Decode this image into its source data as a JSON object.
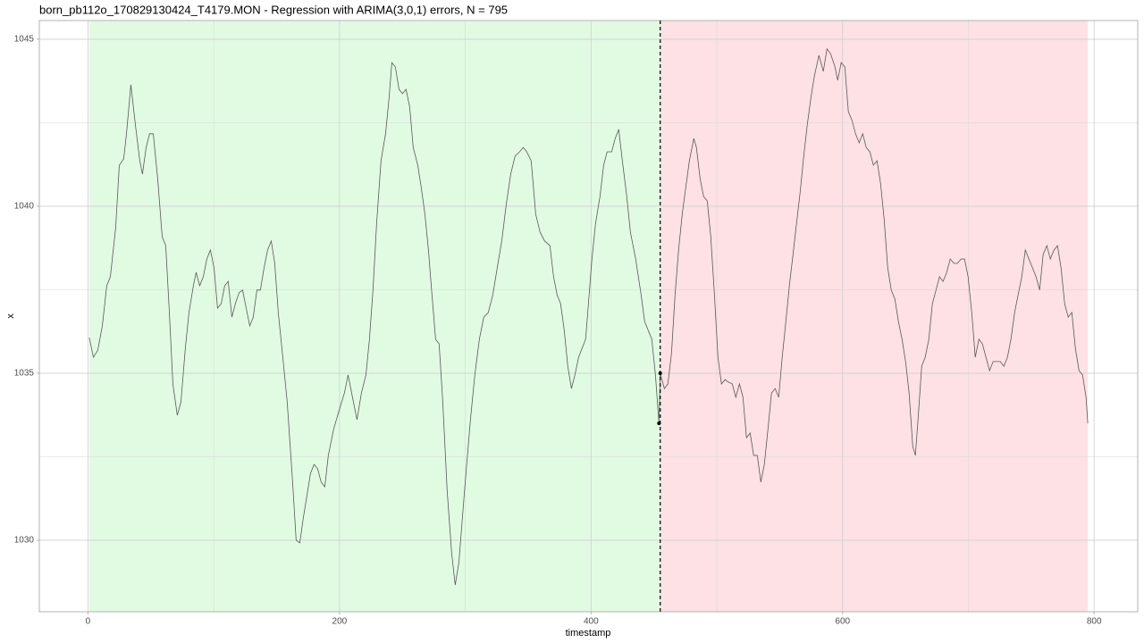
{
  "chart_data": {
    "type": "line",
    "title": "born_pb112o_170829130424_T4179.MON - Regression with ARIMA(3,0,1) errors, N = 795",
    "x_label": "timestamp",
    "y_label": "x",
    "xlim": [
      -38.7,
      834.7
    ],
    "ylim": [
      1027.86,
      1045.56
    ],
    "xticks": [
      0,
      200,
      400,
      600,
      800
    ],
    "yticks": [
      1030,
      1035,
      1040,
      1045
    ],
    "x_minor_ticks": [
      100,
      300,
      500,
      700
    ],
    "y_minor_ticks": [
      1032.5,
      1037.5,
      1042.5
    ],
    "grid": true,
    "regions": [
      {
        "from": 1,
        "to": 455,
        "color": "#e0fbe1"
      },
      {
        "from": 455,
        "to": 795,
        "color": "#fde1e4"
      }
    ],
    "changepoint": 455,
    "markers": {
      "x": [
        454,
        455
      ],
      "y": [
        1033.5,
        1035.0
      ],
      "color": "#000000"
    },
    "x": [
      1,
      4.3,
      7.8,
      11.4,
      14.9,
      17.8,
      22.0,
      24.9,
      28.4,
      30.6,
      34.1,
      37.7,
      41.2,
      43.3,
      46.2,
      49.0,
      51.9,
      55.4,
      59.0,
      61.8,
      64.7,
      67.5,
      71.0,
      73.9,
      77.4,
      80.3,
      83.8,
      86.0,
      88.8,
      91.7,
      94.5,
      97.3,
      100.2,
      103.0,
      105.9,
      108.7,
      111.5,
      114.4,
      117.2,
      120.1,
      122.9,
      125.8,
      128.6,
      131.4,
      134.3,
      137.1,
      140.0,
      142.8,
      145.7,
      148.5,
      151.3,
      154.9,
      158.4,
      162.7,
      165.5,
      168.4,
      171.2,
      174.1,
      176.9,
      179.8,
      182.6,
      185.4,
      188.3,
      191.1,
      195.4,
      199.6,
      203.9,
      206.8,
      210.3,
      213.9,
      217.4,
      221.0,
      223.8,
      226.6,
      229.5,
      233.0,
      236.6,
      239.4,
      241.6,
      244.4,
      247.3,
      250.1,
      252.9,
      255.8,
      258.6,
      262.2,
      265.0,
      267.9,
      270.7,
      273.5,
      276.4,
      279.2,
      282.1,
      285.6,
      289.2,
      292.0,
      294.9,
      297.7,
      300.5,
      304.1,
      307.6,
      311.2,
      314.7,
      318.3,
      321.9,
      325.4,
      329.0,
      332.5,
      336.1,
      339.6,
      343.2,
      346.0,
      348.9,
      352.4,
      356.0,
      359.5,
      363.1,
      367.3,
      370.2,
      373.0,
      375.8,
      378.7,
      381.5,
      384.4,
      387.2,
      390.1,
      392.9,
      395.7,
      397.9,
      400.7,
      403.6,
      407.1,
      410.0,
      412.8,
      416.4,
      419.2,
      422.0,
      424.9,
      428.4,
      431.3,
      435.5,
      439.8,
      442.6,
      445.5,
      448.3,
      451.2,
      454,
      455,
      458.3,
      461.1,
      464.0,
      466.8,
      469.6,
      472.5,
      475.3,
      478.2,
      481.7,
      483.8,
      486.7,
      489.5,
      492.4,
      495.2,
      498.1,
      500.9,
      503.7,
      506.6,
      509.4,
      512.3,
      515.1,
      518.0,
      520.8,
      523.6,
      526.5,
      529.3,
      532.2,
      535.0,
      537.8,
      540.7,
      543.5,
      546.4,
      549.2,
      552.0,
      554.9,
      557.7,
      560.6,
      563.4,
      566.3,
      569.1,
      571.9,
      574.8,
      577.6,
      581.2,
      584.7,
      587.6,
      590.4,
      594.0,
      596.1,
      598.9,
      601.8,
      604.6,
      607.5,
      610.3,
      613.2,
      616.0,
      618.8,
      621.7,
      624.5,
      627.4,
      630.2,
      633.0,
      635.9,
      638.7,
      641.6,
      644.4,
      647.3,
      650.1,
      652.9,
      655.8,
      657.9,
      660.0,
      662.9,
      665.7,
      668.6,
      671.4,
      674.3,
      677.1,
      679.9,
      682.8,
      685.6,
      688.5,
      691.3,
      694.2,
      697.0,
      699.8,
      702.7,
      705.5,
      708.4,
      711.2,
      714.0,
      716.9,
      719.7,
      722.6,
      725.4,
      728.3,
      731.1,
      733.9,
      736.8,
      739.6,
      742.5,
      745.3,
      748.2,
      751.0,
      753.8,
      756.7,
      759.5,
      762.4,
      765.2,
      768.1,
      770.9,
      773.7,
      776.6,
      779.4,
      782.3,
      785.1,
      788.0,
      790.8,
      793.6,
      795
    ],
    "series": [
      {
        "color": "#595959",
        "values": [
          1036.07,
          1035.48,
          1035.69,
          1036.42,
          1037.62,
          1037.89,
          1039.36,
          1041.23,
          1041.42,
          1042.17,
          1043.64,
          1042.43,
          1041.36,
          1040.96,
          1041.76,
          1042.17,
          1042.17,
          1040.83,
          1039.09,
          1038.82,
          1036.82,
          1034.68,
          1033.74,
          1034.14,
          1035.75,
          1036.82,
          1037.62,
          1038.02,
          1037.62,
          1037.89,
          1038.42,
          1038.69,
          1038.16,
          1036.95,
          1037.08,
          1037.62,
          1037.75,
          1036.68,
          1037.08,
          1037.41,
          1037.49,
          1036.95,
          1036.42,
          1036.68,
          1037.49,
          1037.49,
          1038.16,
          1038.69,
          1038.96,
          1038.29,
          1036.82,
          1035.48,
          1034.14,
          1031.74,
          1030.0,
          1029.92,
          1030.67,
          1031.34,
          1032.0,
          1032.27,
          1032.14,
          1031.74,
          1031.6,
          1032.54,
          1033.34,
          1033.88,
          1034.41,
          1034.95,
          1034.28,
          1033.61,
          1034.41,
          1034.95,
          1036.02,
          1037.49,
          1039.49,
          1041.36,
          1042.17,
          1043.24,
          1044.3,
          1044.17,
          1043.5,
          1043.37,
          1043.5,
          1042.97,
          1041.76,
          1041.23,
          1040.56,
          1039.76,
          1038.69,
          1037.35,
          1036.02,
          1035.88,
          1034.14,
          1031.47,
          1029.6,
          1028.66,
          1029.33,
          1030.67,
          1032.0,
          1033.61,
          1034.95,
          1036.02,
          1036.68,
          1036.82,
          1037.35,
          1038.16,
          1038.96,
          1040.03,
          1040.96,
          1041.5,
          1041.63,
          1041.76,
          1041.63,
          1041.36,
          1039.76,
          1039.22,
          1038.96,
          1038.82,
          1037.89,
          1037.35,
          1037.08,
          1036.28,
          1035.21,
          1034.54,
          1034.95,
          1035.48,
          1035.75,
          1036.02,
          1037.08,
          1038.42,
          1039.49,
          1040.29,
          1041.23,
          1041.63,
          1041.63,
          1042.03,
          1042.3,
          1041.36,
          1040.29,
          1039.22,
          1038.42,
          1037.35,
          1036.55,
          1036.28,
          1036.02,
          1034.95,
          1033.5,
          1035.0,
          1034.54,
          1034.68,
          1035.61,
          1037.35,
          1038.69,
          1039.76,
          1040.56,
          1041.36,
          1042.03,
          1041.76,
          1040.83,
          1040.29,
          1040.16,
          1039.09,
          1037.35,
          1035.48,
          1034.68,
          1034.81,
          1034.73,
          1034.68,
          1034.28,
          1034.68,
          1034.28,
          1033.07,
          1033.21,
          1032.54,
          1032.54,
          1031.74,
          1032.27,
          1033.34,
          1034.41,
          1034.54,
          1034.28,
          1035.48,
          1036.55,
          1037.62,
          1038.56,
          1039.49,
          1040.43,
          1041.5,
          1042.43,
          1043.24,
          1043.9,
          1044.52,
          1044.04,
          1044.71,
          1044.57,
          1044.17,
          1043.77,
          1044.3,
          1044.17,
          1042.83,
          1042.57,
          1042.17,
          1041.9,
          1042.17,
          1041.76,
          1041.63,
          1041.23,
          1041.36,
          1040.69,
          1039.63,
          1038.16,
          1037.49,
          1037.22,
          1036.55,
          1036.02,
          1035.35,
          1034.41,
          1032.81,
          1032.54,
          1033.61,
          1035.21,
          1035.48,
          1036.02,
          1037.08,
          1037.49,
          1037.89,
          1037.75,
          1038.02,
          1038.42,
          1038.29,
          1038.29,
          1038.42,
          1038.42,
          1037.89,
          1036.82,
          1035.48,
          1036.02,
          1035.88,
          1035.48,
          1035.08,
          1035.35,
          1035.35,
          1035.35,
          1035.21,
          1035.48,
          1036.02,
          1036.82,
          1037.35,
          1037.89,
          1038.69,
          1038.42,
          1038.16,
          1037.89,
          1037.49,
          1038.56,
          1038.82,
          1038.42,
          1038.69,
          1038.82,
          1038.16,
          1037.08,
          1036.68,
          1036.82,
          1035.75,
          1035.08,
          1034.95,
          1034.28,
          1033.5
        ]
      }
    ]
  }
}
